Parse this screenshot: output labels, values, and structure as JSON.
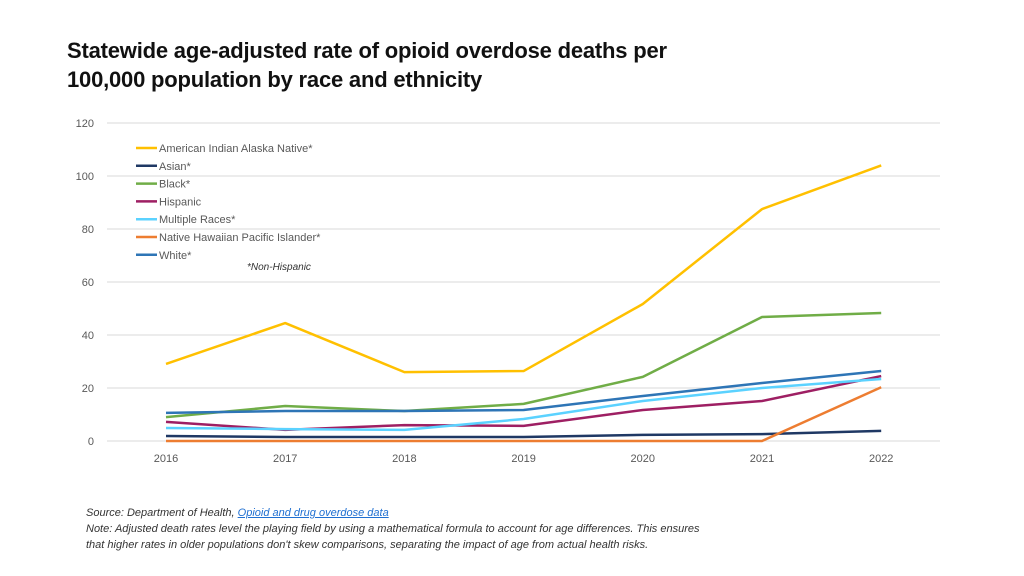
{
  "chart_data": {
    "type": "line",
    "title": "Statewide age-adjusted rate of opioid overdose deaths per 100,000 population by race and ethnicity",
    "x": [
      "2016",
      "2017",
      "2018",
      "2019",
      "2020",
      "2021",
      "2022"
    ],
    "ylim": [
      0,
      120
    ],
    "yticks": [
      0,
      20,
      40,
      60,
      80,
      100,
      120
    ],
    "grid": true,
    "legend_position": "top-left",
    "legend_note": "*Non-Hispanic",
    "series": [
      {
        "name": "American Indian Alaska Native*",
        "color": "#FFC000",
        "values": [
          29.1,
          44.5,
          26.0,
          26.4,
          51.7,
          87.5,
          104.0
        ]
      },
      {
        "name": "Asian*",
        "color": "#1F3864",
        "values": [
          1.9,
          1.5,
          1.5,
          1.5,
          2.3,
          2.6,
          3.8
        ]
      },
      {
        "name": "Black*",
        "color": "#70AD47",
        "values": [
          9.0,
          13.2,
          11.3,
          14.0,
          24.2,
          46.8,
          48.3
        ]
      },
      {
        "name": "Hispanic",
        "color": "#9E1F63",
        "values": [
          7.2,
          4.2,
          6.0,
          5.7,
          11.7,
          15.1,
          24.5
        ]
      },
      {
        "name": "Multiple Races*",
        "color": "#5BD2FF",
        "values": [
          4.9,
          4.5,
          4.2,
          8.3,
          15.1,
          20.0,
          23.4
        ]
      },
      {
        "name": "Native Hawaiian Pacific Islander*",
        "color": "#ED7D31",
        "values": [
          0,
          0,
          0,
          0,
          0,
          0,
          20.3
        ]
      },
      {
        "name": "White*",
        "color": "#2E75B6",
        "values": [
          10.6,
          11.3,
          11.3,
          11.7,
          17.0,
          21.9,
          26.4
        ]
      }
    ]
  },
  "footer": {
    "source_prefix": "Source: Department of Health, ",
    "source_link": "Opioid and drug overdose data",
    "note_line1": "Note: Adjusted death rates level the playing field by using a mathematical formula to account for age differences. This ensures",
    "note_line2": "that higher rates in older populations don't skew comparisons, separating the impact of age from actual health risks."
  }
}
